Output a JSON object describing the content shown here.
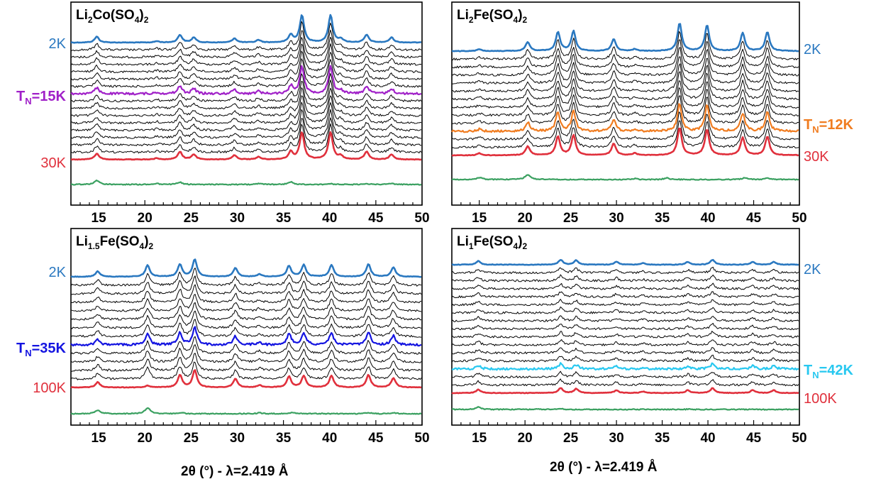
{
  "figure": {
    "xlabels": [
      "2θ (°) - λ=2.419 Å",
      "2θ (°) - λ=2.419 Å"
    ]
  },
  "chart_data": [
    {
      "type": "line",
      "title": {
        "base": "Li",
        "sub1": "2",
        "mid": "Co(SO",
        "sub2": "4",
        "end": ")",
        "sub3": "2"
      },
      "xlabel": "2θ (°) - λ=2.419 Å",
      "xlim": [
        12,
        50
      ],
      "x_ticks": [
        15,
        20,
        25,
        30,
        35,
        40,
        45,
        50
      ],
      "label_side": "left",
      "peaks": [
        {
          "x": 14.8,
          "h": 0.35
        },
        {
          "x": 21.3,
          "h": 0.08
        },
        {
          "x": 23.8,
          "h": 0.45
        },
        {
          "x": 25.3,
          "h": 0.3
        },
        {
          "x": 29.7,
          "h": 0.25
        },
        {
          "x": 32.3,
          "h": 0.15
        },
        {
          "x": 35.8,
          "h": 0.45
        },
        {
          "x": 37.0,
          "h": 1.6
        },
        {
          "x": 40.1,
          "h": 1.6
        },
        {
          "x": 41.2,
          "h": 0.2
        },
        {
          "x": 44.0,
          "h": 0.45
        },
        {
          "x": 46.7,
          "h": 0.3
        }
      ],
      "extra_peaks": [],
      "extra_on_blue": false,
      "paramag_peaks": [
        {
          "x": 14.8,
          "h": 0.45
        },
        {
          "x": 21.3,
          "h": 0.1
        },
        {
          "x": 23.8,
          "h": 0.25
        },
        {
          "x": 32.3,
          "h": 0.1
        },
        {
          "x": 35.8,
          "h": 0.3
        },
        {
          "x": 40.1,
          "h": 0.1
        },
        {
          "x": 44.0,
          "h": 0.1
        },
        {
          "x": 46.7,
          "h": 0.1
        }
      ],
      "curve_count": 17,
      "highlight_index": 7,
      "highlight_color": "#a020c8",
      "blue_color": "#2a78c0",
      "red_color": "#e0303c",
      "green_color": "#3aa060",
      "labels": {
        "top": "2K",
        "mid_main": "T",
        "mid_sub": "N",
        "mid_value": "=15K",
        "bottom": "30K"
      }
    },
    {
      "type": "line",
      "title": {
        "base": "Li",
        "sub1": "2",
        "mid": "Fe(SO",
        "sub2": "4",
        "end": ")",
        "sub3": "2"
      },
      "xlabel": "",
      "xlim": [
        12,
        50
      ],
      "x_ticks": [
        15,
        20,
        25,
        30,
        35,
        40,
        45,
        50
      ],
      "label_side": "right",
      "peaks": [
        {
          "x": 15.0,
          "h": 0.1
        },
        {
          "x": 20.3,
          "h": 0.45
        },
        {
          "x": 23.6,
          "h": 0.95
        },
        {
          "x": 25.3,
          "h": 1.0
        },
        {
          "x": 29.7,
          "h": 0.6
        },
        {
          "x": 32.0,
          "h": 0.1
        },
        {
          "x": 36.9,
          "h": 1.4
        },
        {
          "x": 39.9,
          "h": 1.3
        },
        {
          "x": 43.8,
          "h": 0.9
        },
        {
          "x": 46.5,
          "h": 0.95
        }
      ],
      "extra_peaks": [],
      "extra_on_blue": false,
      "paramag_peaks": [
        {
          "x": 15.0,
          "h": 0.2
        },
        {
          "x": 20.3,
          "h": 0.5
        },
        {
          "x": 32.0,
          "h": 0.1
        },
        {
          "x": 35.5,
          "h": 0.15
        },
        {
          "x": 44.0,
          "h": 0.15
        },
        {
          "x": 46.5,
          "h": 0.15
        }
      ],
      "curve_count": 14,
      "highlight_index": 10,
      "highlight_color": "#f07c20",
      "blue_color": "#2a78c0",
      "red_color": "#e0303c",
      "green_color": "#3aa060",
      "labels": {
        "top": "2K",
        "mid_main": "T",
        "mid_sub": "N",
        "mid_value": "=12K",
        "bottom": "30K"
      }
    },
    {
      "type": "line",
      "title": {
        "base": "Li",
        "sub1": "1.5",
        "mid": "Fe(SO",
        "sub2": "4",
        "end": ")",
        "sub3": "2"
      },
      "xlabel": "2θ (°) - λ=2.419 Å",
      "xlim": [
        12,
        50
      ],
      "x_ticks": [
        15,
        20,
        25,
        30,
        35,
        40,
        45,
        50
      ],
      "label_side": "left",
      "peaks": [
        {
          "x": 14.9,
          "h": 0.35
        },
        {
          "x": 23.8,
          "h": 0.8
        },
        {
          "x": 25.4,
          "h": 1.1
        },
        {
          "x": 29.8,
          "h": 0.55
        },
        {
          "x": 32.4,
          "h": 0.15
        },
        {
          "x": 35.6,
          "h": 0.7
        },
        {
          "x": 37.2,
          "h": 0.75
        },
        {
          "x": 40.2,
          "h": 0.75
        },
        {
          "x": 44.2,
          "h": 0.8
        },
        {
          "x": 46.9,
          "h": 0.6
        }
      ],
      "extra_peaks": [
        {
          "x": 20.3,
          "h": 0.75
        }
      ],
      "extra_on_blue": true,
      "paramag_peaks": [
        {
          "x": 14.9,
          "h": 0.45
        },
        {
          "x": 20.3,
          "h": 0.75
        },
        {
          "x": 24.0,
          "h": 0.1
        },
        {
          "x": 32.4,
          "h": 0.1
        },
        {
          "x": 36.0,
          "h": 0.15
        },
        {
          "x": 44.2,
          "h": 0.15
        },
        {
          "x": 47.0,
          "h": 0.1
        }
      ],
      "curve_count": 14,
      "highlight_index": 8,
      "highlight_color": "#1414e0",
      "blue_color": "#2a78c0",
      "red_color": "#e0303c",
      "green_color": "#3aa060",
      "labels": {
        "top": "2K",
        "mid_main": "T",
        "mid_sub": "N",
        "mid_value": "=35K",
        "bottom": "100K"
      }
    },
    {
      "type": "line",
      "title": {
        "base": "Li",
        "sub1": "1",
        "mid": "Fe(SO",
        "sub2": "4",
        "end": ")",
        "sub3": "2"
      },
      "xlabel": "2θ (°) - λ=2.419 Å",
      "xlim": [
        12,
        50
      ],
      "x_ticks": [
        15,
        20,
        25,
        30,
        35,
        40,
        45,
        50
      ],
      "label_side": "right",
      "peaks": [
        {
          "x": 14.9,
          "h": 0.25
        },
        {
          "x": 23.9,
          "h": 0.35
        },
        {
          "x": 25.6,
          "h": 0.3
        },
        {
          "x": 30.0,
          "h": 0.2
        },
        {
          "x": 32.9,
          "h": 0.1
        },
        {
          "x": 37.8,
          "h": 0.2
        },
        {
          "x": 40.5,
          "h": 0.35
        },
        {
          "x": 44.9,
          "h": 0.2
        },
        {
          "x": 47.2,
          "h": 0.2
        }
      ],
      "extra_peaks": [],
      "extra_on_blue": false,
      "paramag_peaks": [
        {
          "x": 14.9,
          "h": 0.35
        },
        {
          "x": 21.3,
          "h": 0.08
        },
        {
          "x": 24.0,
          "h": 0.08
        },
        {
          "x": 33.0,
          "h": 0.05
        },
        {
          "x": 38.0,
          "h": 0.05
        },
        {
          "x": 41.5,
          "h": 0.05
        }
      ],
      "curve_count": 17,
      "highlight_index": 13,
      "highlight_color": "#28c8f0",
      "blue_color": "#2a78c0",
      "red_color": "#e0303c",
      "green_color": "#3aa060",
      "labels": {
        "top": "2K",
        "mid_main": "T",
        "mid_sub": "N",
        "mid_value": "=42K",
        "bottom": "100K"
      }
    }
  ]
}
